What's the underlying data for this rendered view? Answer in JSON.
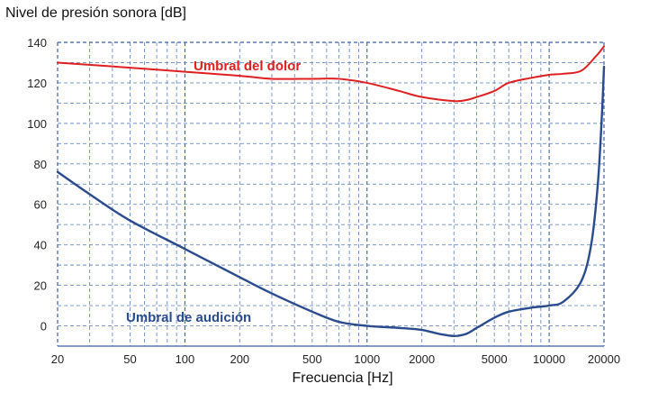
{
  "chart_data": {
    "type": "line",
    "xscale": "log",
    "xlim": [
      20,
      20000
    ],
    "ylim": [
      -10,
      140
    ],
    "ylabel": "Nivel de presión sonora [dB]",
    "xlabel": "Frecuencia [Hz]",
    "x_tick_labels": [
      "20",
      "50",
      "100",
      "200",
      "500",
      "1000",
      "2000",
      "5000",
      "10000",
      "20000"
    ],
    "x_ticks": [
      20,
      50,
      100,
      200,
      500,
      1000,
      2000,
      5000,
      10000,
      20000
    ],
    "y_ticks": [
      0,
      20,
      40,
      60,
      80,
      100,
      120,
      140
    ],
    "grid": true,
    "series": [
      {
        "name": "Umbral del dolor",
        "color": "#e02020",
        "x": [
          20,
          50,
          100,
          200,
          300,
          500,
          700,
          1000,
          1500,
          2000,
          3000,
          3500,
          4000,
          5000,
          6000,
          8000,
          10000,
          12000,
          15000,
          18000,
          20000
        ],
        "y": [
          130,
          127.5,
          125.5,
          123.5,
          122,
          122,
          122,
          120,
          116,
          113,
          111,
          111.5,
          113,
          116,
          120,
          122.5,
          124,
          124.5,
          126,
          133,
          138
        ]
      },
      {
        "name": "Umbral de audición",
        "color": "#2a4b8d",
        "x": [
          20,
          30,
          50,
          100,
          200,
          300,
          500,
          700,
          1000,
          1500,
          2000,
          2500,
          3000,
          3500,
          4000,
          5000,
          6000,
          8000,
          10000,
          12000,
          15000,
          17000,
          18500,
          19500,
          20000
        ],
        "y": [
          76,
          65,
          52,
          38,
          24,
          16,
          7,
          2,
          0,
          -1,
          -2,
          -4,
          -5,
          -4,
          -1,
          4,
          7,
          9,
          10,
          12,
          22,
          40,
          70,
          105,
          128
        ]
      }
    ]
  }
}
